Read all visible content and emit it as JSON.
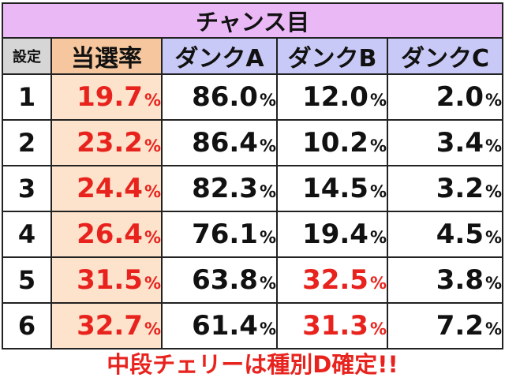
{
  "title": "チャンス目",
  "headers": {
    "setting": "設定",
    "rate": "当選率",
    "a": "ダンクA",
    "b": "ダンクB",
    "c": "ダンクC"
  },
  "pct": "%",
  "rows": [
    {
      "setting": "1",
      "rate": "19.7",
      "a": "86.0",
      "b": "12.0",
      "c": "2.0"
    },
    {
      "setting": "2",
      "rate": "23.2",
      "a": "86.4",
      "b": "10.2",
      "c": "3.4"
    },
    {
      "setting": "3",
      "rate": "24.4",
      "a": "82.3",
      "b": "14.5",
      "c": "3.2"
    },
    {
      "setting": "4",
      "rate": "26.4",
      "a": "76.1",
      "b": "19.4",
      "c": "4.5"
    },
    {
      "setting": "5",
      "rate": "31.5",
      "a": "63.8",
      "b": "32.5",
      "c": "3.8"
    },
    {
      "setting": "6",
      "rate": "32.7",
      "a": "61.4",
      "b": "31.3",
      "c": "7.2"
    }
  ],
  "footer": "中段チェリーは種別D確定!!",
  "colors": {
    "red_text": "#e8231e",
    "title_bg": "#e9b8f5",
    "rate_header_bg": "#f6c79e",
    "rate_cell_bg": "#fde3cb",
    "type_header_bg": "#c9c9f7",
    "setting_header_bg": "#d6d6d6"
  }
}
